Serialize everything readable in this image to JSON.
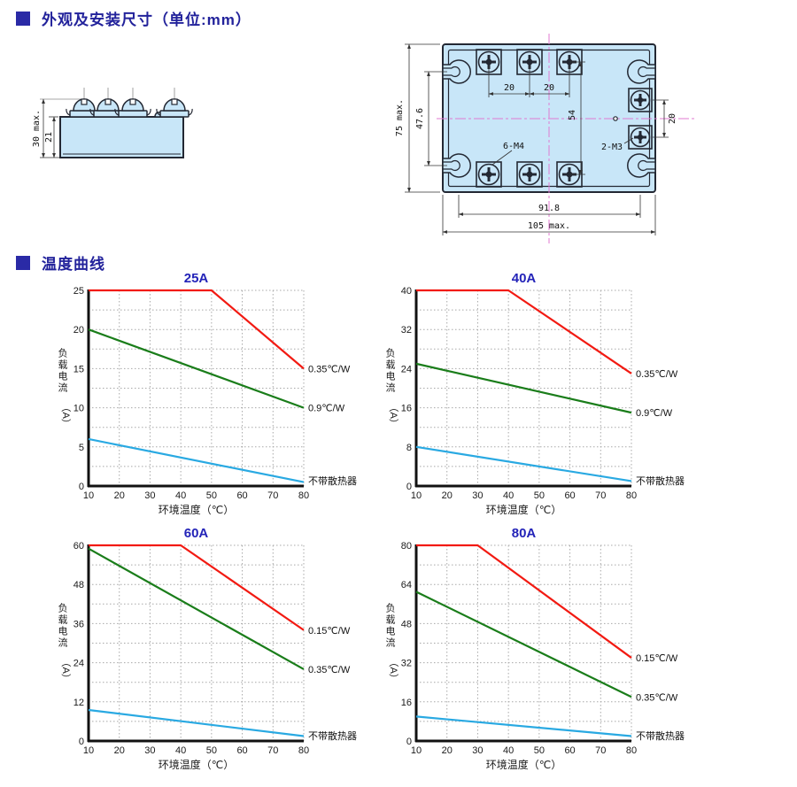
{
  "page": {
    "accent_color": "#2a2aa6",
    "header_text_color": "#22229b"
  },
  "sections": {
    "dimensions": {
      "title": "外观及安装尺寸（单位:mm）"
    },
    "curves": {
      "title": "温度曲线"
    }
  },
  "drawings": {
    "fill_color": "#c8e6f8",
    "side_view": {
      "dim_height_max": "30 max.",
      "dim_body_height": "21"
    },
    "top_view": {
      "dim_height_max": "75 max.",
      "dim_slot_span": "47.6",
      "dim_pitch_a": "20",
      "dim_pitch_b": "20",
      "dim_span_mid": "54",
      "dim_right_pitch": "20",
      "label_main_screws": "6-M4",
      "label_aux_screws": "2-M3",
      "dim_hole_span": "91.8",
      "dim_width_max": "105 max."
    }
  },
  "charts": {
    "title_color": "#2323b8",
    "grid_color": "#a8a8a8",
    "axis_color": "#111111"
  },
  "chart_data": [
    {
      "type": "line",
      "title": "25A",
      "xlabel": "环境温度（℃）",
      "ylabel": "负载电流",
      "ylabel_unit": "（A）",
      "xlim": [
        10,
        80
      ],
      "xticks": [
        10,
        20,
        30,
        40,
        50,
        60,
        70,
        80
      ],
      "ylim": [
        0,
        25
      ],
      "yticks": [
        0,
        5,
        10,
        15,
        20,
        25
      ],
      "grid": "dotted",
      "legend_position": "right-of-line-ends",
      "series": [
        {
          "label": "0.35℃/W",
          "color": "#f21a12",
          "points": [
            [
              10,
              25
            ],
            [
              50,
              25
            ],
            [
              80,
              15
            ]
          ]
        },
        {
          "label": "0.9℃/W",
          "color": "#1a7d1a",
          "points": [
            [
              10,
              20
            ],
            [
              80,
              10
            ]
          ]
        },
        {
          "label": "不带散热器",
          "color": "#29a9e2",
          "points": [
            [
              10,
              6
            ],
            [
              80,
              0.5
            ]
          ]
        }
      ]
    },
    {
      "type": "line",
      "title": "40A",
      "xlabel": "环境温度（℃）",
      "ylabel": "负载电流",
      "ylabel_unit": "（A）",
      "xlim": [
        10,
        80
      ],
      "xticks": [
        10,
        20,
        30,
        40,
        50,
        60,
        70,
        80
      ],
      "ylim": [
        0,
        40
      ],
      "yticks": [
        0,
        8,
        16,
        24,
        32,
        40
      ],
      "grid": "dotted",
      "legend_position": "right-of-line-ends",
      "series": [
        {
          "label": "0.35℃/W",
          "color": "#f21a12",
          "points": [
            [
              10,
              40
            ],
            [
              40,
              40
            ],
            [
              80,
              23
            ]
          ]
        },
        {
          "label": "0.9℃/W",
          "color": "#1a7d1a",
          "points": [
            [
              10,
              25
            ],
            [
              80,
              15
            ]
          ]
        },
        {
          "label": "不带散热器",
          "color": "#29a9e2",
          "points": [
            [
              10,
              8
            ],
            [
              80,
              1
            ]
          ]
        }
      ]
    },
    {
      "type": "line",
      "title": "60A",
      "xlabel": "环境温度（℃）",
      "ylabel": "负载电流",
      "ylabel_unit": "（A）",
      "xlim": [
        10,
        80
      ],
      "xticks": [
        10,
        20,
        30,
        40,
        50,
        60,
        70,
        80
      ],
      "ylim": [
        0,
        60
      ],
      "yticks": [
        0,
        12,
        24,
        36,
        48,
        60
      ],
      "grid": "dotted",
      "legend_position": "right-of-line-ends",
      "series": [
        {
          "label": "0.15℃/W",
          "color": "#f21a12",
          "points": [
            [
              10,
              60
            ],
            [
              40,
              60
            ],
            [
              80,
              34
            ]
          ]
        },
        {
          "label": "0.35℃/W",
          "color": "#1a7d1a",
          "points": [
            [
              10,
              59
            ],
            [
              80,
              22
            ]
          ]
        },
        {
          "label": "不带散热器",
          "color": "#29a9e2",
          "points": [
            [
              10,
              9.5
            ],
            [
              80,
              1.5
            ]
          ]
        }
      ]
    },
    {
      "type": "line",
      "title": "80A",
      "xlabel": "环境温度（℃）",
      "ylabel": "负载电流",
      "ylabel_unit": "（A）",
      "xlim": [
        10,
        80
      ],
      "xticks": [
        10,
        20,
        30,
        40,
        50,
        60,
        70,
        80
      ],
      "ylim": [
        0,
        80
      ],
      "yticks": [
        0,
        16,
        32,
        48,
        64,
        80
      ],
      "grid": "dotted",
      "legend_position": "right-of-line-ends",
      "series": [
        {
          "label": "0.15℃/W",
          "color": "#f21a12",
          "points": [
            [
              10,
              80
            ],
            [
              30,
              80
            ],
            [
              80,
              34
            ]
          ]
        },
        {
          "label": "0.35℃/W",
          "color": "#1a7d1a",
          "points": [
            [
              10,
              61
            ],
            [
              80,
              18
            ]
          ]
        },
        {
          "label": "不带散热器",
          "color": "#29a9e2",
          "points": [
            [
              10,
              10
            ],
            [
              80,
              2
            ]
          ]
        }
      ]
    }
  ]
}
